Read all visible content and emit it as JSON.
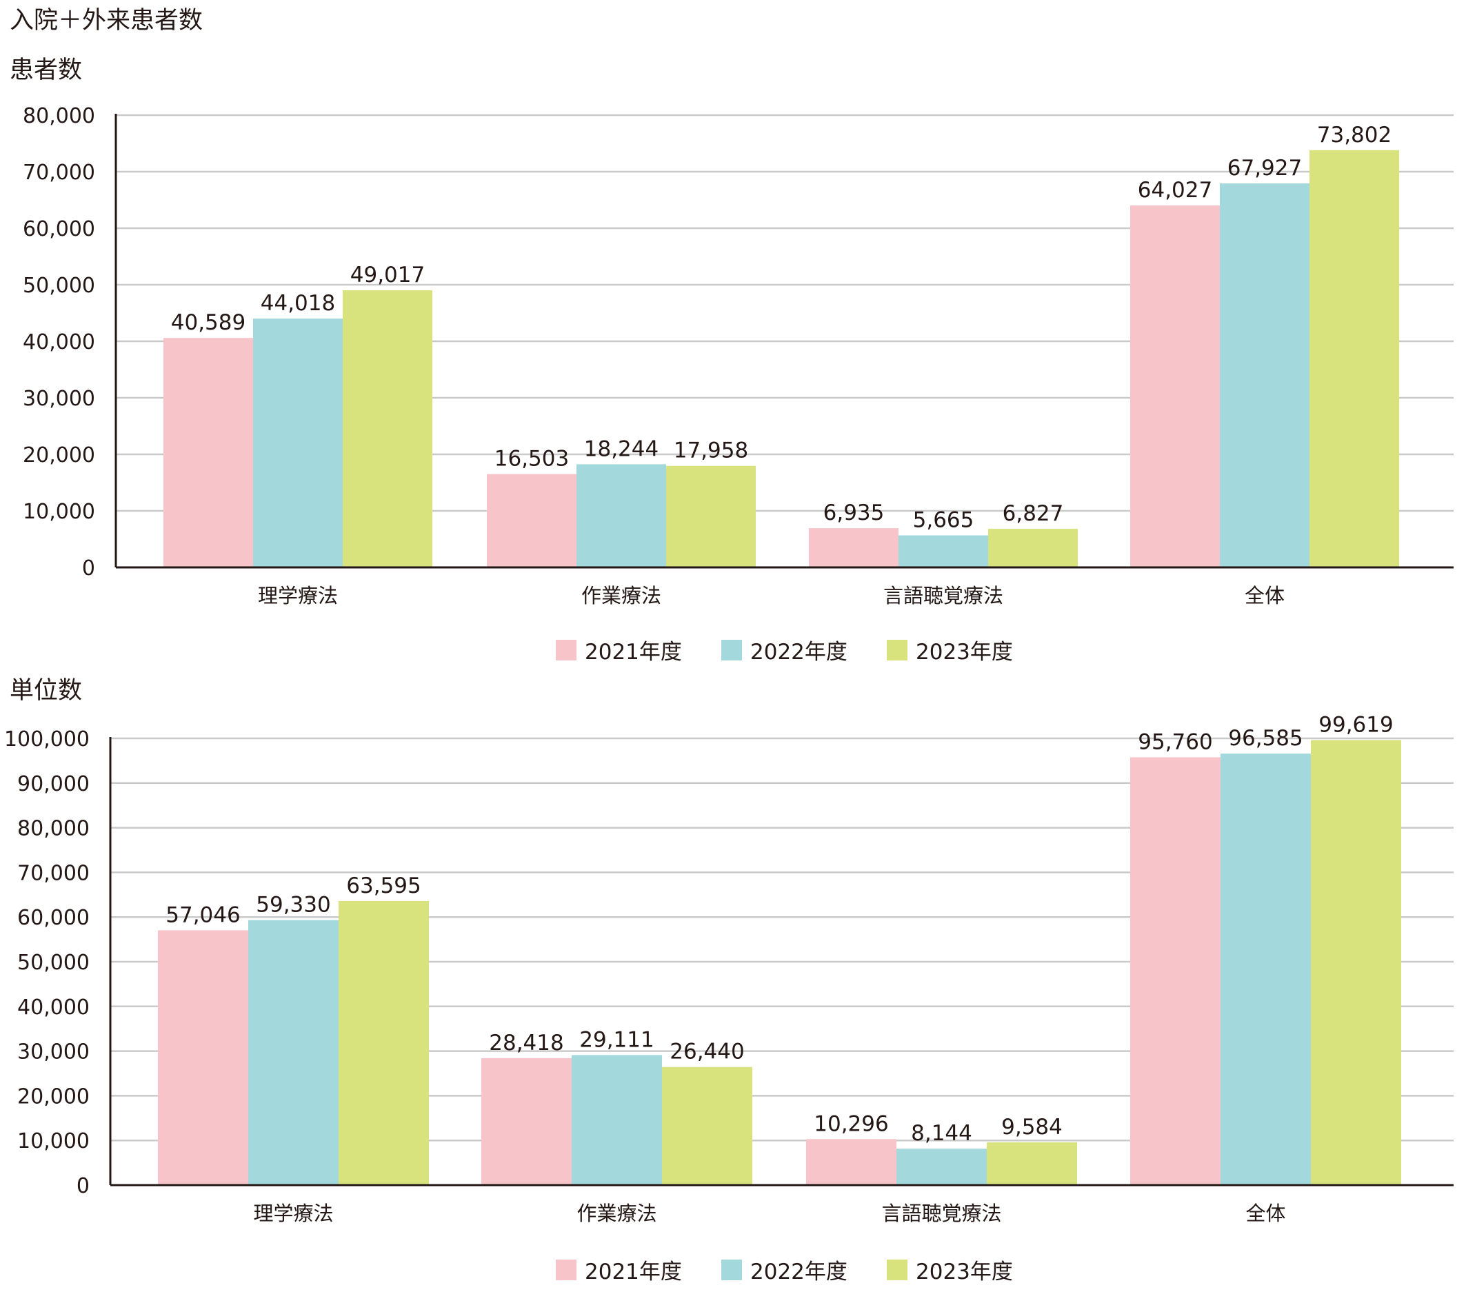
{
  "page_title": "入院＋外来患者数",
  "colors": {
    "2021年度": "#f7c5c9",
    "2022年度": "#a3d8dd",
    "2023年度": "#d8e37e",
    "grid": "#c9c9c9",
    "axis": "#231815",
    "text": "#231815"
  },
  "chart_data": [
    {
      "type": "bar",
      "title": "患者数",
      "categories": [
        "理学療法",
        "作業療法",
        "言語聴覚療法",
        "全体"
      ],
      "series": [
        {
          "name": "2021年度",
          "values": [
            40589,
            16503,
            6935,
            64027
          ],
          "labels": [
            "40,589",
            "16,503",
            "6,935",
            "64,027"
          ]
        },
        {
          "name": "2022年度",
          "values": [
            44018,
            18244,
            5665,
            67927
          ],
          "labels": [
            "44,018",
            "18,244",
            "5,665",
            "67,927"
          ]
        },
        {
          "name": "2023年度",
          "values": [
            49017,
            17958,
            6827,
            73802
          ],
          "labels": [
            "49,017",
            "17,958",
            "6,827",
            "73,802"
          ]
        }
      ],
      "ylim": [
        0,
        80000
      ],
      "yticks": [
        0,
        10000,
        20000,
        30000,
        40000,
        50000,
        60000,
        70000,
        80000
      ],
      "ytick_labels": [
        "0",
        "10,000",
        "20,000",
        "30,000",
        "40,000",
        "50,000",
        "60,000",
        "70,000",
        "80,000"
      ],
      "grid": true,
      "legend": "bottom-center",
      "legend_labels": [
        "2021年度",
        "2022年度",
        "2023年度"
      ]
    },
    {
      "type": "bar",
      "title": "単位数",
      "categories": [
        "理学療法",
        "作業療法",
        "言語聴覚療法",
        "全体"
      ],
      "series": [
        {
          "name": "2021年度",
          "values": [
            57046,
            28418,
            10296,
            95760
          ],
          "labels": [
            "57,046",
            "28,418",
            "10,296",
            "95,760"
          ]
        },
        {
          "name": "2022年度",
          "values": [
            59330,
            29111,
            8144,
            96585
          ],
          "labels": [
            "59,330",
            "29,111",
            "8,144",
            "96,585"
          ]
        },
        {
          "name": "2023年度",
          "values": [
            63595,
            26440,
            9584,
            99619
          ],
          "labels": [
            "63,595",
            "26,440",
            "9,584",
            "99,619"
          ]
        }
      ],
      "ylim": [
        0,
        100000
      ],
      "yticks": [
        0,
        10000,
        20000,
        30000,
        40000,
        50000,
        60000,
        70000,
        80000,
        90000,
        100000
      ],
      "ytick_labels": [
        "0",
        "10,000",
        "20,000",
        "30,000",
        "40,000",
        "50,000",
        "60,000",
        "70,000",
        "80,000",
        "90,000",
        "100,000"
      ],
      "grid": true,
      "legend": "bottom-center",
      "legend_labels": [
        "2021年度",
        "2022年度",
        "2023年度"
      ]
    }
  ]
}
